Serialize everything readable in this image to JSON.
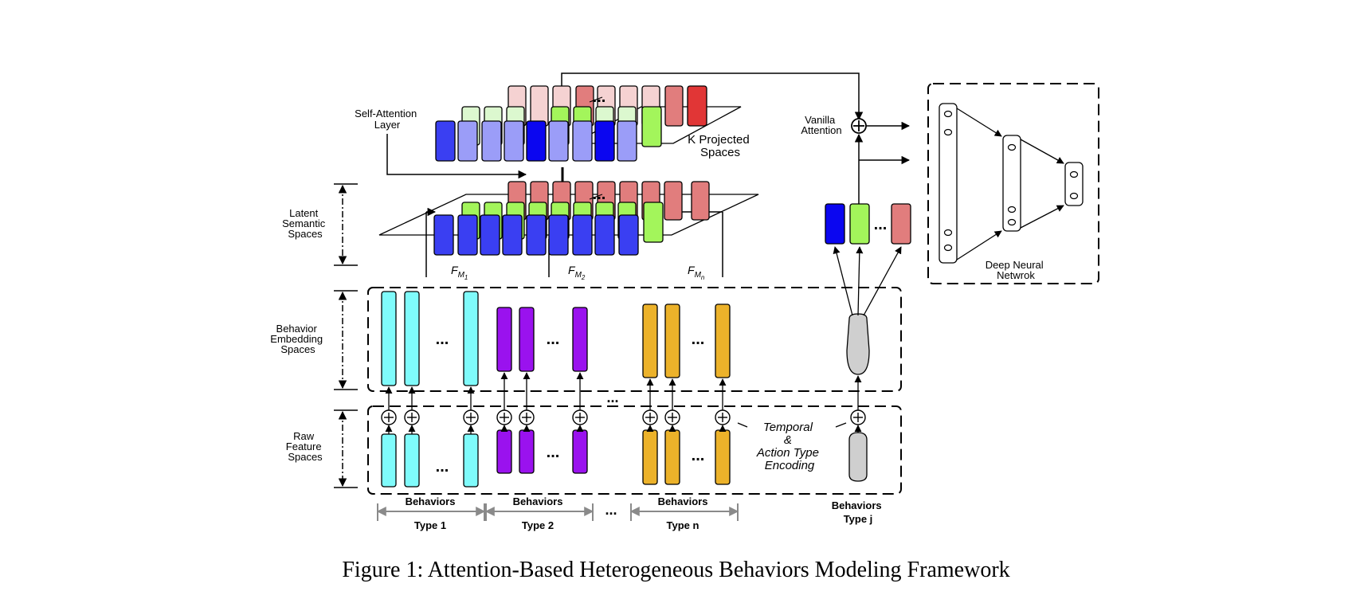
{
  "labels": {
    "self_attention": [
      "Self-Attention",
      "Layer"
    ],
    "k_projected": [
      "K Projected",
      "Spaces"
    ],
    "latent": [
      "Latent",
      "Semantic",
      "Spaces"
    ],
    "behavior_embedding": [
      "Behavior",
      "Embedding",
      "Spaces"
    ],
    "raw_feature": [
      "Raw",
      "Feature",
      "Spaces"
    ],
    "vanilla_attention": [
      "Vanilla",
      "Attention"
    ],
    "deep_nn": [
      "Deep Neural",
      "Netwrok"
    ],
    "temporal": [
      "Temporal",
      "&",
      "Action Type",
      "Encoding"
    ],
    "fm": [
      {
        "base": "F",
        "sub": "M",
        "subsub": "1"
      },
      {
        "base": "F",
        "sub": "M",
        "subsub": "2"
      },
      {
        "base": "F",
        "sub": "M",
        "subsub": "n"
      }
    ],
    "behavior_groups": [
      {
        "top": "Behaviors",
        "bottom": "Type 1"
      },
      {
        "top": "Behaviors",
        "bottom": "Type 2"
      },
      {
        "top": "Behaviors",
        "bottom": "Type n"
      }
    ],
    "behavior_j": [
      "Behaviors",
      "Type j"
    ],
    "ellipsis": "...",
    "plus": "+"
  },
  "caption": "Figure 1: Attention-Based Heterogeneous Behaviors Modeling Framework",
  "colors": {
    "cyan": "#7ffbfb",
    "purple": "#9a12ee",
    "gold": "#ecb22a",
    "blue": "#3a3ff2",
    "blue_light": "#9b9df8",
    "blue_dark": "#0b06f0",
    "green": "#a3f55b",
    "green_light": "#dcf8cf",
    "pink": "#e17d7d",
    "pink_light": "#f5d2d2",
    "red": "#e13636",
    "gray": "#cfcfcf",
    "bracket_gray": "#8a8a8a"
  }
}
